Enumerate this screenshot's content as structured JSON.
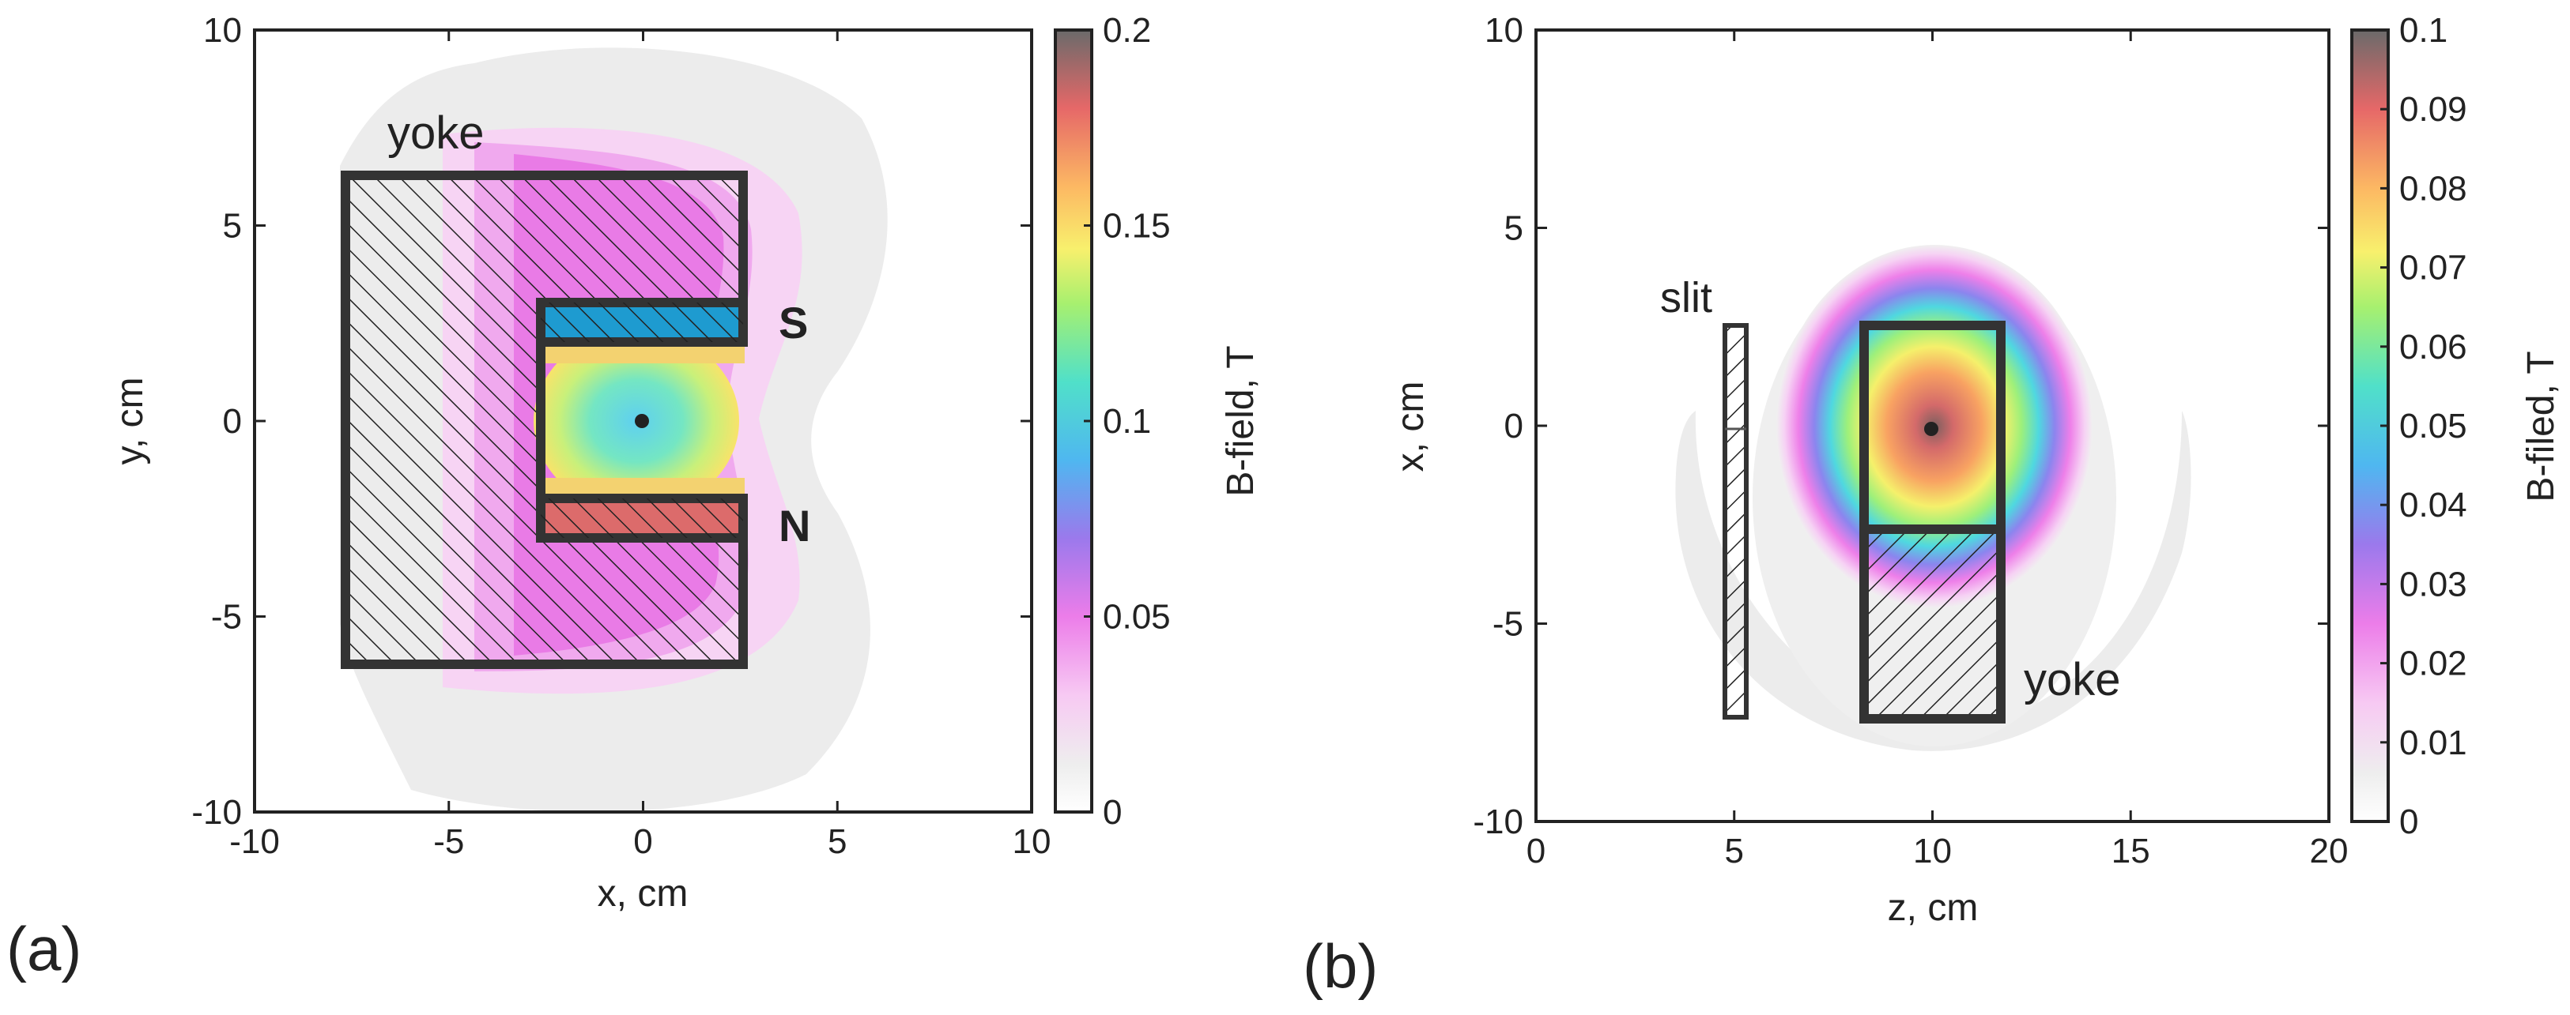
{
  "figure": {
    "panel_a_label": "(a)",
    "panel_b_label": "(b)"
  },
  "chart_data": [
    {
      "type": "heatmap",
      "panel": "(a)",
      "title": "",
      "xlabel": "x, cm",
      "ylabel": "y, cm",
      "xlim": [
        -10,
        10
      ],
      "ylim": [
        -10,
        10
      ],
      "xticks": [
        -10,
        -5,
        0,
        5,
        10
      ],
      "yticks": [
        -10,
        -5,
        0,
        5,
        10
      ],
      "colorbar": {
        "label": "B-field, T",
        "range": [
          0,
          0.2
        ],
        "ticks": [
          "0",
          "0.05",
          "0.1",
          "0.15",
          "0.2"
        ],
        "tick_values": [
          0,
          0.05,
          0.1,
          0.15,
          0.2
        ]
      },
      "field_model": {
        "description": "Magnetic field between pole pieces of a C-shaped magnet",
        "peak_T": 0.2,
        "min_in_gap_T": 0.1,
        "outer_halo_T": 0.005
      },
      "regions": [
        {
          "name": "yoke",
          "label": "yoke",
          "polygon": [
            [
              -7.5,
              6.2
            ],
            [
              2.5,
              6.2
            ],
            [
              2.5,
              3.0
            ],
            [
              -2.5,
              3.0
            ],
            [
              -2.5,
              -3.0
            ],
            [
              2.5,
              -3.0
            ],
            [
              2.5,
              -6.2
            ],
            [
              -7.5,
              -6.2
            ]
          ],
          "fill": "hatch"
        },
        {
          "name": "pole-s",
          "label": "S",
          "rect": [
            -2.5,
            2.0,
            2.5,
            3.0
          ],
          "fill": "#1e9bd0"
        },
        {
          "name": "pole-n",
          "label": "N",
          "rect": [
            -2.5,
            -3.0,
            2.5,
            -2.0
          ],
          "fill": "#dc6b6b"
        }
      ],
      "center_point": [
        0,
        0
      ]
    },
    {
      "type": "heatmap",
      "panel": "(b)",
      "title": "",
      "xlabel": "z, cm",
      "ylabel": "x, cm",
      "xlim": [
        0,
        20
      ],
      "ylim": [
        -10,
        10
      ],
      "xticks": [
        0,
        5,
        10,
        15,
        20
      ],
      "yticks": [
        -10,
        -5,
        0,
        5,
        10
      ],
      "colorbar": {
        "label": "B-filed, T",
        "range": [
          0,
          0.1
        ],
        "ticks": [
          "0",
          "0.01",
          "0.02",
          "0.03",
          "0.04",
          "0.05",
          "0.06",
          "0.07",
          "0.08",
          "0.09",
          "0.1"
        ],
        "tick_values": [
          0,
          0.01,
          0.02,
          0.03,
          0.04,
          0.05,
          0.06,
          0.07,
          0.08,
          0.09,
          0.1
        ]
      },
      "field_model": {
        "description": "Field distribution in the z-x plane around the pole region",
        "peak_T": 0.1,
        "center": [
          10,
          0
        ]
      },
      "regions": [
        {
          "name": "slit",
          "label": "slit",
          "rect": [
            4.7,
            -7.4,
            5.2,
            2.5
          ],
          "fill": "hatch"
        },
        {
          "name": "pole-window",
          "label": "",
          "rect": [
            8.2,
            -2.6,
            11.7,
            2.5
          ],
          "fill": "none"
        },
        {
          "name": "yoke",
          "label": "yoke",
          "rect": [
            8.2,
            -7.4,
            11.7,
            -2.6
          ],
          "fill": "hatch"
        }
      ],
      "center_point": [
        10,
        0
      ]
    }
  ]
}
